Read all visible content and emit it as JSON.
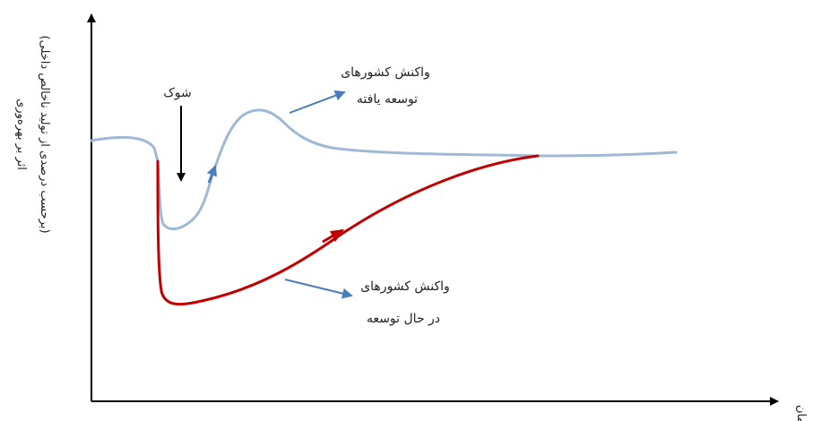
{
  "y_axis_label_line1": "اثر بر بهره‌وری",
  "y_axis_label_line2": "(برحسب درصدی از تولید ناخالص داخلی)",
  "x_axis_label": "زمان",
  "shock_label": "شوک",
  "developed_label_line1": "واکنش کشورهای",
  "developed_label_line2": "توسعه یافته",
  "developing_label_line1": "واکنش کشورهای",
  "developing_label_line2": "در حال توسعه",
  "colors": {
    "developed_curve": "#9fb8d6",
    "developing_curve": "#c00000",
    "pointer_arrow": "#4a7ebb",
    "axis": "#000000"
  }
}
